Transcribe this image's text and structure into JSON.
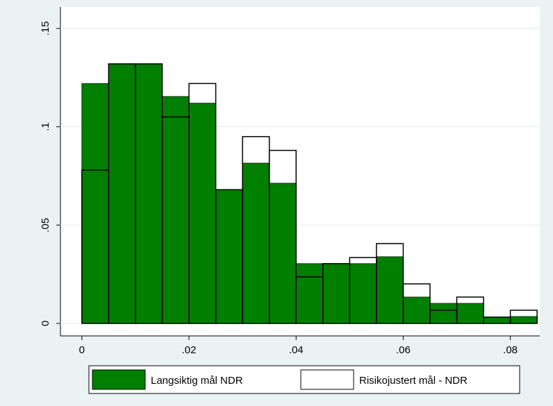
{
  "chart_data": {
    "type": "histogram",
    "bins": [
      0,
      0.005,
      0.01,
      0.015,
      0.02,
      0.025,
      0.03,
      0.035,
      0.04,
      0.045,
      0.05,
      0.055,
      0.06,
      0.065,
      0.07,
      0.075,
      0.08,
      0.085
    ],
    "series": [
      {
        "name": "Langsiktig mål NDR",
        "color": "#007f00",
        "filled": true,
        "values": [
          0.122,
          0.132,
          0.132,
          0.1154,
          0.112,
          0.068,
          0.0815,
          0.0713,
          0.0304,
          0.0304,
          0.0304,
          0.0339,
          0.0134,
          0.0102,
          0.0102,
          0.0032,
          0.0035
        ]
      },
      {
        "name": "Risikojustert mål - NDR",
        "color": "#ffffff",
        "filled": false,
        "values": [
          0.078,
          0.132,
          0.132,
          0.105,
          0.122,
          0.068,
          0.095,
          0.088,
          0.0237,
          0.0304,
          0.0335,
          0.0406,
          0.0201,
          0.0067,
          0.0134,
          0.0032,
          0.0067
        ]
      }
    ],
    "xlim": [
      -0.004,
      0.0855
    ],
    "ylim": [
      0,
      0.15
    ],
    "xticks": [
      0,
      {
        "value": 0.02,
        "label": ".02"
      },
      {
        "value": 0.04,
        "label": ".04"
      },
      {
        "value": 0.06,
        "label": ".06"
      },
      {
        "value": 0.08,
        "label": ".08"
      }
    ],
    "yticks": [
      0,
      {
        "value": 0.05,
        "label": ".05"
      },
      {
        "value": 0.1,
        "label": ".1"
      },
      {
        "value": 0.15,
        "label": ".15"
      }
    ],
    "grid": true,
    "legend": "bottom"
  }
}
